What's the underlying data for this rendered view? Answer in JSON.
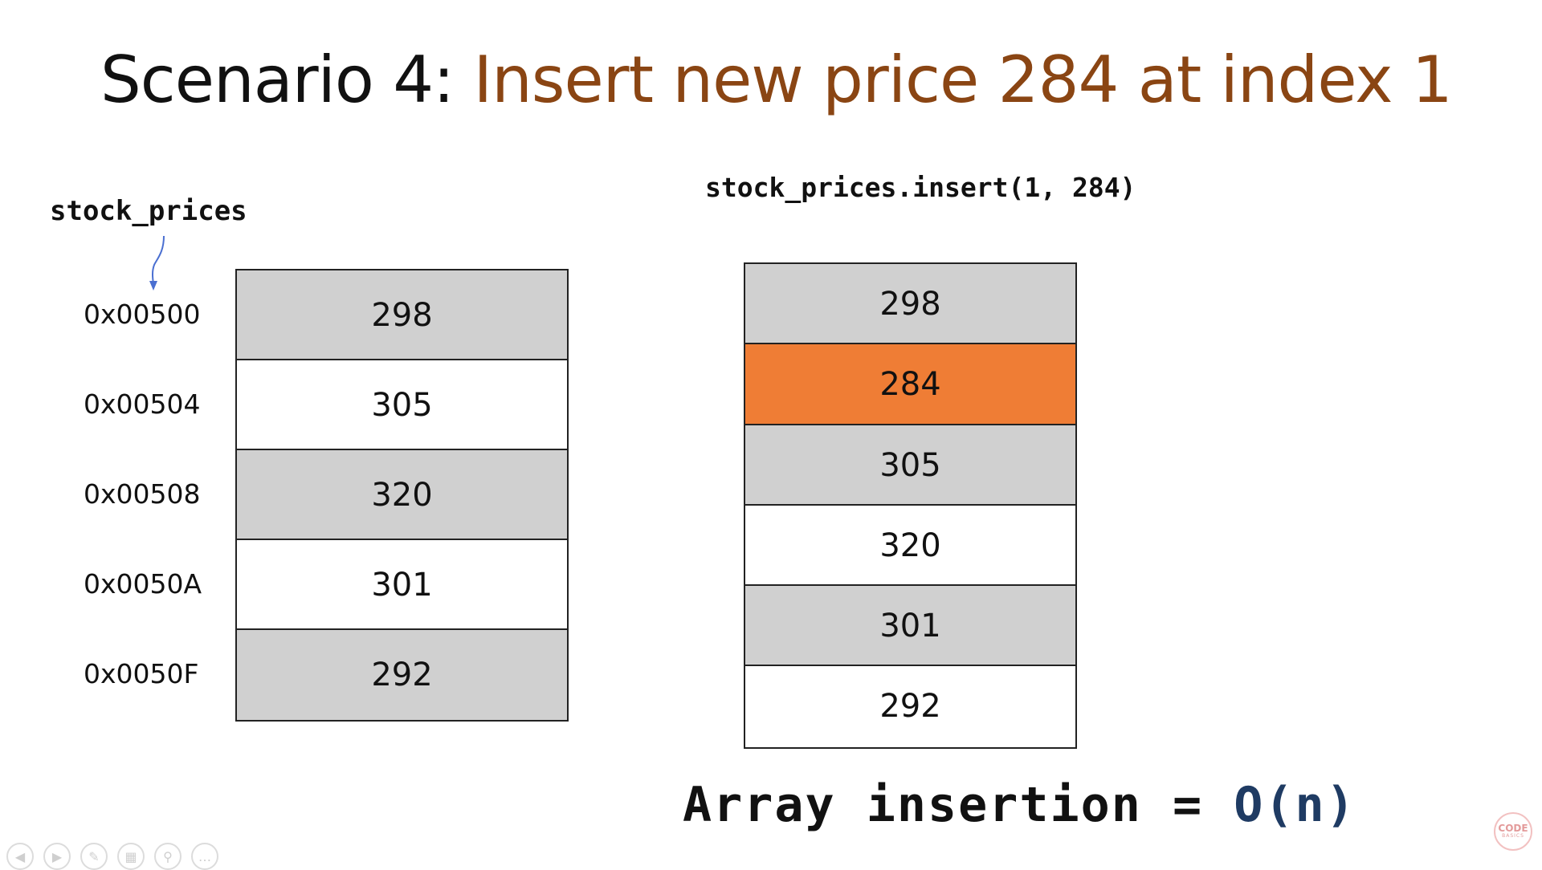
{
  "slide": {
    "title_prefix": "Scenario 4: ",
    "title_rest": "Insert new price 284 at index 1",
    "variable_label": "stock_prices",
    "code": "stock_prices.insert(1, 284)",
    "complexity_prefix": "Array insertion = ",
    "complexity_value": "O(n)"
  },
  "before": {
    "addresses": [
      "0x00500",
      "0x00504",
      "0x00508",
      "0x0050A",
      "0x0050F"
    ],
    "values": [
      "298",
      "305",
      "320",
      "301",
      "292"
    ]
  },
  "after": {
    "values": [
      "298",
      "284",
      "305",
      "320",
      "301",
      "292"
    ],
    "highlight_index": 1
  },
  "colors": {
    "title_accent": "#8a4513",
    "cell_gray": "#d0d0d0",
    "cell_highlight": "#ef7d35",
    "complexity_accent": "#1f3b63",
    "pointer_arrow": "#4a6fd1"
  },
  "controls": {
    "icons": [
      "previous-icon",
      "next-icon",
      "pen-icon",
      "slides-icon",
      "zoom-icon",
      "more-icon"
    ]
  },
  "logo": {
    "line1": "CODE",
    "line2": "BASICS"
  }
}
